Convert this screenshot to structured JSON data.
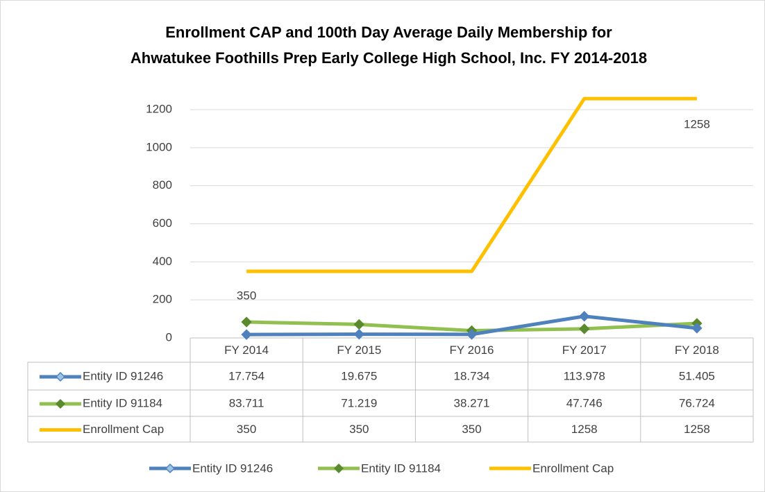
{
  "chart_data": {
    "type": "line",
    "title": "Enrollment CAP and 100th Day Average Daily Membership for",
    "subtitle": "Ahwatukee Foothills Prep Early College High School, Inc. FY 2014-2018",
    "categories": [
      "FY 2014",
      "FY 2015",
      "FY 2016",
      "FY 2017",
      "FY 2018"
    ],
    "series": [
      {
        "name": "Entity ID 91246",
        "color": "#4f81bd",
        "marker": "diamond",
        "values": [
          17.754,
          19.675,
          18.734,
          113.978,
          51.405
        ]
      },
      {
        "name": "Entity ID 91184",
        "color": "#92c050",
        "marker": "diamond",
        "values": [
          83.711,
          71.219,
          38.271,
          47.746,
          76.724
        ]
      },
      {
        "name": "Enrollment Cap",
        "color": "#ffc000",
        "values": [
          350,
          350,
          350,
          1258,
          1258
        ],
        "value_labels": [
          "350",
          null,
          null,
          null,
          "1258"
        ]
      }
    ],
    "ylim": [
      0,
      1200
    ],
    "yticks": [
      0,
      200,
      400,
      600,
      800,
      1000,
      1200
    ],
    "grid": true,
    "legend": "bottom",
    "data_table": true
  }
}
